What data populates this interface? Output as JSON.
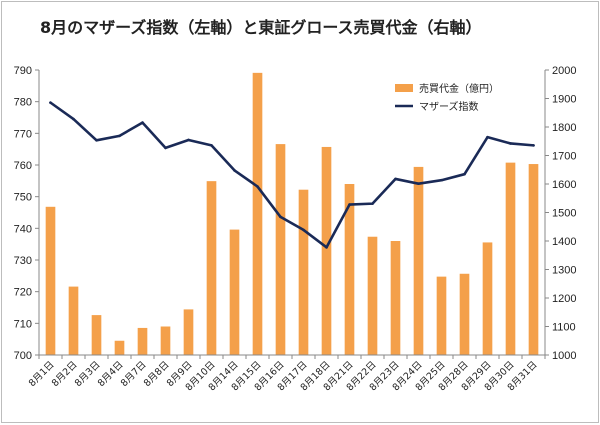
{
  "chart_data": {
    "type": "bar+line",
    "title": "8月のマザーズ指数（左軸）と東証グロース売買代金（右軸）",
    "categories": [
      "8月1日",
      "8月2日",
      "8月3日",
      "8月4日",
      "8月7日",
      "8月8日",
      "8月9日",
      "8月10日",
      "8月14日",
      "8月15日",
      "8月16日",
      "8月17日",
      "8月18日",
      "8月21日",
      "8月22日",
      "8月23日",
      "8月24日",
      "8月25日",
      "8月28日",
      "8月29日",
      "8月30日",
      "8月31日"
    ],
    "series": [
      {
        "name": "売買代金（億円）",
        "type": "bar",
        "axis": "right",
        "color": "#f4a04a",
        "values": [
          1520,
          1240,
          1140,
          1050,
          1095,
          1100,
          1160,
          1610,
          1440,
          1990,
          1740,
          1580,
          1730,
          1600,
          1415,
          1400,
          1660,
          1275,
          1285,
          1395,
          1675,
          1670
        ]
      },
      {
        "name": "マザーズ指数",
        "type": "line",
        "axis": "left",
        "color": "#1a2a57",
        "values": [
          779.7,
          774.5,
          767.8,
          769.2,
          773.4,
          765.4,
          767.9,
          766.2,
          758.3,
          753.2,
          743.6,
          739.5,
          734.0,
          747.5,
          747.8,
          755.6,
          754.1,
          755.2,
          757.1,
          768.8,
          766.8,
          766.2
        ]
      }
    ],
    "y_left": {
      "range": [
        700,
        790
      ],
      "ticks": [
        "700",
        "710",
        "720",
        "730",
        "740",
        "750",
        "760",
        "770",
        "780",
        "790"
      ]
    },
    "y_right": {
      "range": [
        1000,
        2000
      ],
      "ticks": [
        "1000",
        "1100",
        "1200",
        "1300",
        "1400",
        "1500",
        "1600",
        "1700",
        "1800",
        "1900",
        "2000"
      ]
    },
    "legend_position": "top-right",
    "grid": false
  }
}
